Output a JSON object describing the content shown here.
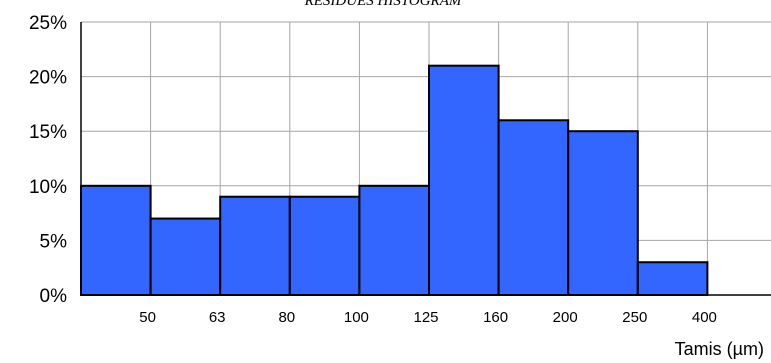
{
  "chart_data": {
    "type": "bar",
    "title": "RESIDUES HISTOGRAM",
    "xlabel": "Tamis (µm)",
    "ylabel": "",
    "categories": [
      "<50",
      "50-63",
      "63-80",
      "80-100",
      "100-125",
      "125-160",
      "160-200",
      "200-250",
      "250-400"
    ],
    "bin_edges_labels": [
      "50",
      "63",
      "80",
      "100",
      "125",
      "160",
      "200",
      "250",
      "400"
    ],
    "values": [
      10,
      7,
      9,
      9,
      10,
      21,
      16,
      15,
      3
    ],
    "value_unit": "%",
    "ylim": [
      0,
      25
    ],
    "yticks": [
      "0%",
      "5%",
      "10%",
      "15%",
      "20%",
      "25%"
    ],
    "grid": true,
    "bar_color": "#3366ff"
  }
}
